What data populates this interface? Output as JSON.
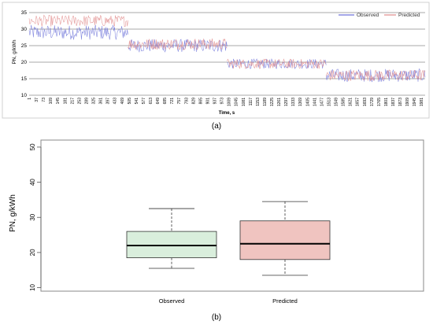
{
  "panels": {
    "a_label": "(a)",
    "b_label": "(b)"
  },
  "colors": {
    "observed": "#6f74d9",
    "predicted": "#e08a8a",
    "box_observed_fill": "#d9eedc",
    "box_predicted_fill": "#f0c4c0",
    "gridline": "#000000"
  },
  "chart_data": [
    {
      "type": "line",
      "panel": "(a)",
      "xlabel": "Time, s",
      "ylabel": "PN, g/kWh",
      "ylim": [
        10,
        35
      ],
      "yticks": [
        10,
        15,
        20,
        25,
        30,
        35
      ],
      "grid": "horizontal",
      "legend_position": "top-right",
      "x_ticks": [
        "1",
        "37",
        "73",
        "109",
        "145",
        "181",
        "217",
        "253",
        "289",
        "325",
        "361",
        "397",
        "433",
        "469",
        "505",
        "541",
        "577",
        "613",
        "649",
        "685",
        "721",
        "757",
        "793",
        "829",
        "865",
        "901",
        "937",
        "973",
        "1009",
        "1045",
        "1081",
        "1117",
        "1153",
        "1189",
        "1225",
        "1261",
        "1297",
        "1333",
        "1369",
        "1405",
        "1441",
        "1477",
        "1513",
        "1549",
        "1585",
        "1621",
        "1657",
        "1693",
        "1729",
        "1765",
        "1801",
        "1837",
        "1873",
        "1909",
        "1945",
        "1981"
      ],
      "x_range": [
        1,
        2000
      ],
      "series": [
        {
          "name": "Observed",
          "segments": [
            {
              "x_start": 1,
              "x_end": 500,
              "mean": 29,
              "range": [
                27,
                31.5
              ]
            },
            {
              "x_start": 500,
              "x_end": 1000,
              "mean": 25,
              "range": [
                23,
                27
              ]
            },
            {
              "x_start": 1000,
              "x_end": 1500,
              "mean": 19.5,
              "range": [
                18,
                21
              ]
            },
            {
              "x_start": 1500,
              "x_end": 2000,
              "mean": 16,
              "range": [
                14,
                18
              ]
            }
          ]
        },
        {
          "name": "Predicted",
          "segments": [
            {
              "x_start": 1,
              "x_end": 500,
              "mean": 32.5,
              "range": [
                30.5,
                34
              ]
            },
            {
              "x_start": 500,
              "x_end": 1000,
              "mean": 25.5,
              "range": [
                24,
                27.5
              ]
            },
            {
              "x_start": 1000,
              "x_end": 1500,
              "mean": 19.5,
              "range": [
                18,
                21
              ]
            },
            {
              "x_start": 1500,
              "x_end": 2000,
              "mean": 16,
              "range": [
                14,
                17.5
              ]
            }
          ]
        }
      ]
    },
    {
      "type": "box",
      "panel": "(b)",
      "ylabel": "PN, g/kWh",
      "ylim": [
        9,
        52
      ],
      "yticks": [
        10,
        20,
        30,
        40,
        50
      ],
      "categories": [
        "Observed",
        "Predicted"
      ],
      "boxes": [
        {
          "name": "Observed",
          "min": 15.5,
          "q1": 18.5,
          "median": 22,
          "q3": 26,
          "max": 32.5
        },
        {
          "name": "Predicted",
          "min": 13.5,
          "q1": 18,
          "median": 22.5,
          "q3": 29,
          "max": 34.5
        }
      ]
    }
  ]
}
